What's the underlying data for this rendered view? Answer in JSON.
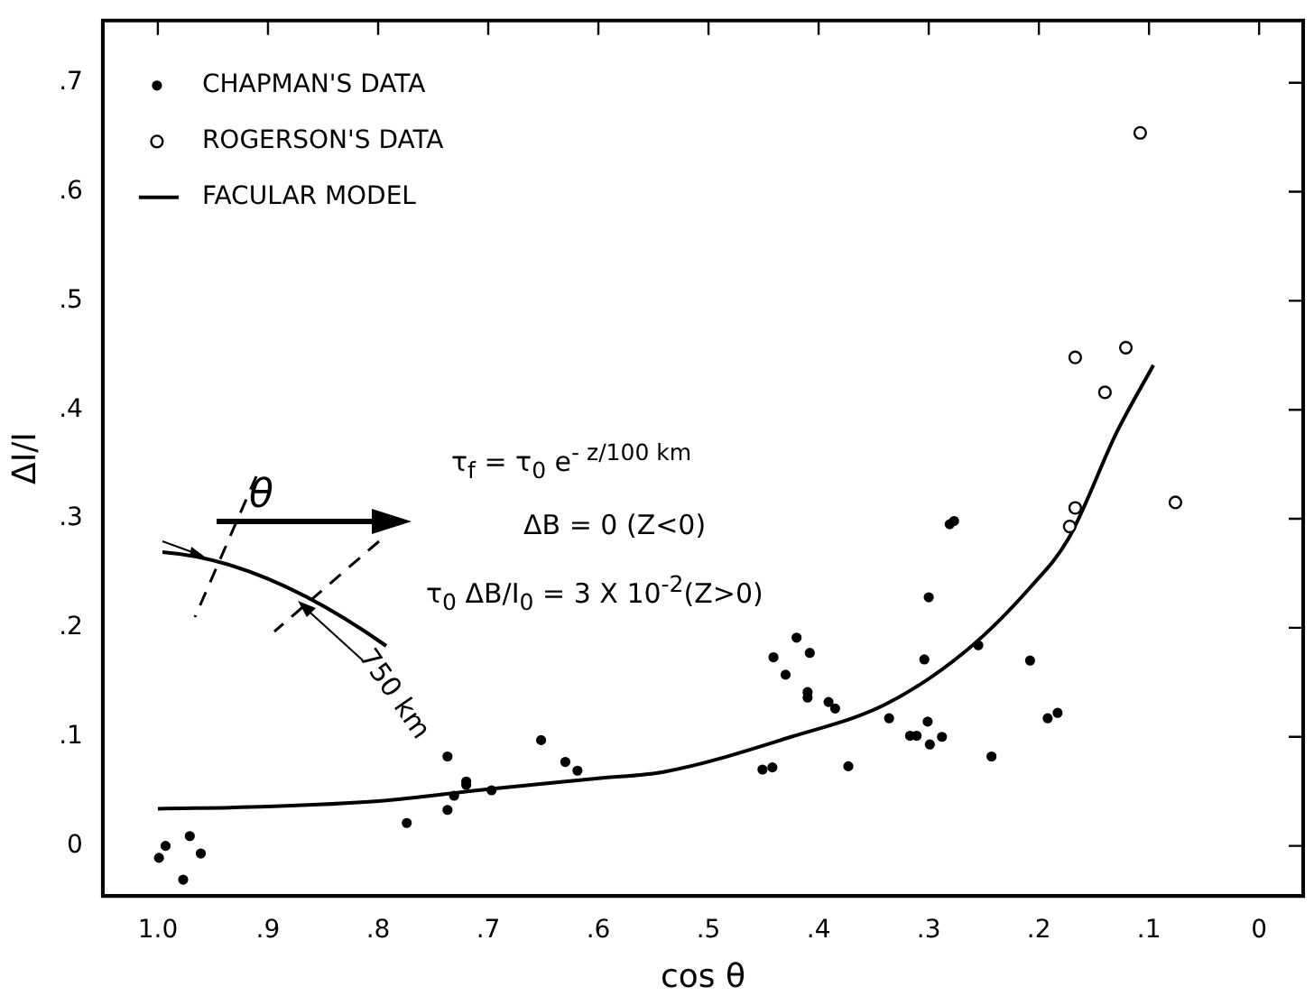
{
  "chart_data": {
    "type": "scatter",
    "xlabel": "cos θ",
    "ylabel": "ΔI/I",
    "xlim": [
      1.05,
      -0.04
    ],
    "ylim": [
      -0.046,
      0.757
    ],
    "xticks": [
      {
        "value": 1.0,
        "label": "1.0"
      },
      {
        "value": 0.9,
        "label": ".9"
      },
      {
        "value": 0.8,
        "label": ".8"
      },
      {
        "value": 0.7,
        "label": ".7"
      },
      {
        "value": 0.6,
        "label": ".6"
      },
      {
        "value": 0.5,
        "label": ".5"
      },
      {
        "value": 0.4,
        "label": ".4"
      },
      {
        "value": 0.3,
        "label": ".3"
      },
      {
        "value": 0.2,
        "label": ".2"
      },
      {
        "value": 0.1,
        "label": ".1"
      },
      0
    ],
    "yticks": [
      0,
      {
        "value": 0.1,
        "label": ".1"
      },
      {
        "value": 0.2,
        "label": ".2"
      },
      {
        "value": 0.3,
        "label": ".3"
      },
      {
        "value": 0.4,
        "label": ".4"
      },
      {
        "value": 0.5,
        "label": ".5"
      },
      {
        "value": 0.6,
        "label": ".6"
      },
      {
        "value": 0.7,
        "label": ".7"
      }
    ],
    "grid": false,
    "legend": "top left",
    "series": [
      {
        "name": "CHAPMAN'S DATA",
        "type": "scatter",
        "marker": "circle",
        "color": "#000000",
        "x": [
          0.999,
          0.993,
          0.977,
          0.971,
          0.961,
          0.774,
          0.737,
          0.737,
          0.731,
          0.72,
          0.72,
          0.697,
          0.652,
          0.63,
          0.619,
          0.451,
          0.442,
          0.441,
          0.43,
          0.42,
          0.408,
          0.41,
          0.41,
          0.391,
          0.385,
          0.373,
          0.336,
          0.317,
          0.311,
          0.301,
          0.3,
          0.304,
          0.299,
          0.288,
          0.281,
          0.277,
          0.255,
          0.243,
          0.208,
          0.192,
          0.183
        ],
        "values": [
          -0.011,
          0.0,
          -0.031,
          0.009,
          -0.007,
          0.021,
          0.082,
          0.033,
          0.046,
          0.059,
          0.056,
          0.051,
          0.097,
          0.077,
          0.069,
          0.07,
          0.072,
          0.173,
          0.157,
          0.191,
          0.177,
          0.141,
          0.136,
          0.132,
          0.126,
          0.073,
          0.117,
          0.101,
          0.101,
          0.114,
          0.228,
          0.171,
          0.093,
          0.1,
          0.295,
          0.298,
          0.184,
          0.082,
          0.17,
          0.117,
          0.122
        ]
      },
      {
        "name": "ROGERSON'S DATA",
        "type": "scatter",
        "marker": "circle",
        "color": "#000000",
        "x": [
          0.108,
          0.167,
          0.121,
          0.14,
          0.167,
          0.172,
          0.076
        ],
        "values": [
          0.654,
          0.448,
          0.457,
          0.416,
          0.31,
          0.293,
          0.315
        ]
      },
      {
        "name": "FACULAR MODEL",
        "type": "line",
        "marker": "none",
        "color": "#000000",
        "x": [
          1.0,
          0.9,
          0.8,
          0.7,
          0.6,
          0.54,
          0.425,
          0.339,
          0.266,
          0.207,
          0.173,
          0.129,
          0.096
        ],
        "values": [
          0.034,
          0.036,
          0.041,
          0.052,
          0.062,
          0.068,
          0.1,
          0.13,
          0.179,
          0.238,
          0.282,
          0.38,
          0.441
        ]
      }
    ],
    "annotations": [
      "τ$_{f}$ = τ$_{0}$  e$^{- z/100 km}$",
      "ΔB = 0  (Z<0)",
      "τ$_{0}$ ΔB/I$_{0}$ = 3 X 10$^{-2}$(Z>0)",
      "θ",
      "750 km"
    ]
  }
}
